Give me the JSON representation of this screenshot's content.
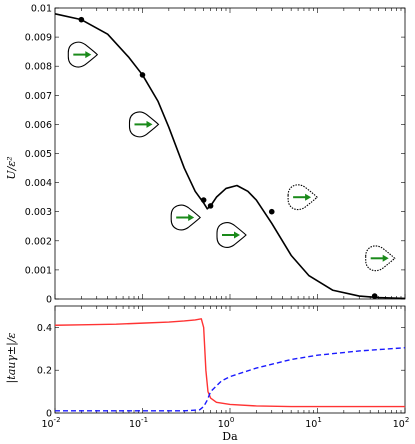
{
  "chart_data": [
    {
      "type": "line",
      "panel": "top",
      "title": "",
      "xlabel": "",
      "ylabel": "U/ε²",
      "xscale": "log",
      "xlim": [
        0.01,
        100
      ],
      "ylim": [
        0,
        0.01
      ],
      "yticks": [
        0,
        0.001,
        0.002,
        0.003,
        0.004,
        0.005,
        0.006,
        0.007,
        0.008,
        0.009,
        0.01
      ],
      "ytick_labels": [
        "0",
        "0.001",
        "0.002",
        "0.003",
        "0.004",
        "0.005",
        "0.006",
        "0.007",
        "0.008",
        "0.009",
        "0.01"
      ],
      "grid": false,
      "series": [
        {
          "color": "#000000",
          "style": "solid",
          "x": [
            0.01,
            0.02,
            0.04,
            0.07,
            0.1,
            0.15,
            0.2,
            0.3,
            0.4,
            0.5,
            0.55,
            0.6,
            0.7,
            0.9,
            1.2,
            1.6,
            2,
            3,
            5,
            8,
            15,
            30,
            50,
            100
          ],
          "y": [
            0.0098,
            0.0096,
            0.0091,
            0.0083,
            0.0077,
            0.0068,
            0.0059,
            0.0045,
            0.0037,
            0.0033,
            0.0031,
            0.0032,
            0.0035,
            0.0038,
            0.0039,
            0.0037,
            0.0034,
            0.0026,
            0.0015,
            0.0008,
            0.0003,
            0.0001,
            5e-05,
            2e-05
          ]
        }
      ],
      "markers": {
        "x": [
          0.02,
          0.1,
          0.5,
          0.6,
          3,
          45
        ],
        "y": [
          0.0096,
          0.0077,
          0.0034,
          0.0032,
          0.003,
          0.0001
        ]
      },
      "insets": [
        {
          "x": 0.02,
          "y": 0.0084,
          "shape": "drop",
          "arrow": "green-right"
        },
        {
          "x": 0.1,
          "y": 0.006,
          "shape": "drop",
          "arrow": "green-right"
        },
        {
          "x": 0.3,
          "y": 0.0028,
          "shape": "drop",
          "arrow": "green-right"
        },
        {
          "x": 1.0,
          "y": 0.0022,
          "shape": "drop",
          "arrow": "green-right"
        },
        {
          "x": 6.5,
          "y": 0.0035,
          "shape": "drop",
          "arrow": "green-right"
        },
        {
          "x": 50,
          "y": 0.0014,
          "shape": "drop",
          "arrow": "green-right"
        }
      ]
    },
    {
      "type": "line",
      "panel": "bottom",
      "title": "",
      "xlabel": "Da",
      "ylabel": "|tauγ±|/ε",
      "xscale": "log",
      "xlim": [
        0.01,
        100
      ],
      "xtick_bases": [
        "10",
        "10",
        "10",
        "10",
        "10"
      ],
      "xtick_exps": [
        "-2",
        "-1",
        "0",
        "1",
        "2"
      ],
      "ylim": [
        0,
        0.5
      ],
      "yticks": [
        0,
        0.2,
        0.4
      ],
      "ytick_labels": [
        "0",
        "0.2",
        "0.4"
      ],
      "grid": false,
      "series": [
        {
          "color": "#ff3333",
          "style": "solid",
          "x": [
            0.01,
            0.02,
            0.05,
            0.1,
            0.2,
            0.3,
            0.4,
            0.47,
            0.5,
            0.53,
            0.56,
            0.6,
            0.7,
            1,
            2,
            5,
            10,
            30,
            100
          ],
          "y": [
            0.41,
            0.412,
            0.415,
            0.42,
            0.425,
            0.43,
            0.435,
            0.44,
            0.4,
            0.2,
            0.1,
            0.07,
            0.05,
            0.04,
            0.033,
            0.03,
            0.03,
            0.03,
            0.03
          ]
        },
        {
          "color": "#1a1aff",
          "style": "dashed",
          "x": [
            0.01,
            0.1,
            0.3,
            0.45,
            0.5,
            0.55,
            0.6,
            0.8,
            1,
            2,
            5,
            10,
            30,
            100
          ],
          "y": [
            0.01,
            0.01,
            0.01,
            0.015,
            0.03,
            0.06,
            0.1,
            0.15,
            0.17,
            0.21,
            0.25,
            0.27,
            0.29,
            0.305
          ]
        }
      ]
    }
  ]
}
